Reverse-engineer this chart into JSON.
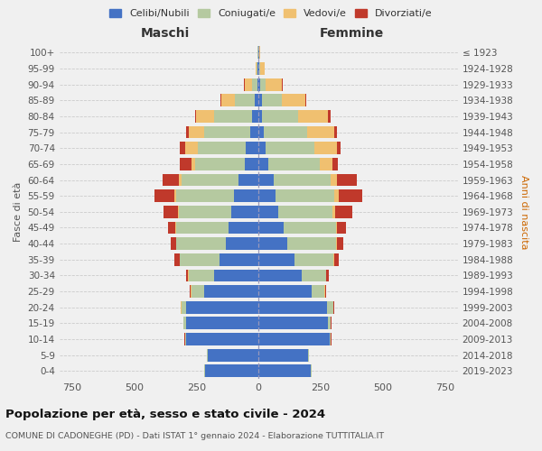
{
  "age_groups": [
    "0-4",
    "5-9",
    "10-14",
    "15-19",
    "20-24",
    "25-29",
    "30-34",
    "35-39",
    "40-44",
    "45-49",
    "50-54",
    "55-59",
    "60-64",
    "65-69",
    "70-74",
    "75-79",
    "80-84",
    "85-89",
    "90-94",
    "95-99",
    "100+"
  ],
  "birth_years": [
    "2019-2023",
    "2014-2018",
    "2009-2013",
    "2004-2008",
    "1999-2003",
    "1994-1998",
    "1989-1993",
    "1984-1988",
    "1979-1983",
    "1974-1978",
    "1969-1973",
    "1964-1968",
    "1959-1963",
    "1954-1958",
    "1949-1953",
    "1944-1948",
    "1939-1943",
    "1934-1938",
    "1929-1933",
    "1924-1928",
    "≤ 1923"
  ],
  "colors": {
    "celibe": "#4472c4",
    "coniugato": "#b5c9a0",
    "vedovo": "#f0c070",
    "divorziato": "#c0392b"
  },
  "maschi": {
    "celibe": [
      215,
      205,
      290,
      290,
      290,
      220,
      180,
      155,
      130,
      120,
      110,
      100,
      80,
      55,
      50,
      35,
      25,
      15,
      5,
      3,
      2
    ],
    "coniugato": [
      2,
      3,
      5,
      10,
      20,
      50,
      100,
      160,
      200,
      210,
      210,
      230,
      230,
      200,
      195,
      185,
      155,
      80,
      20,
      5,
      2
    ],
    "vedovo": [
      1,
      1,
      1,
      1,
      2,
      2,
      2,
      2,
      2,
      3,
      5,
      8,
      10,
      15,
      50,
      60,
      70,
      55,
      30,
      5,
      1
    ],
    "divorziato": [
      0,
      0,
      1,
      1,
      2,
      5,
      10,
      20,
      20,
      30,
      55,
      80,
      65,
      45,
      20,
      10,
      5,
      3,
      2,
      0,
      0
    ]
  },
  "femmine": {
    "nubile": [
      210,
      200,
      285,
      280,
      275,
      215,
      175,
      145,
      115,
      100,
      80,
      70,
      60,
      40,
      30,
      20,
      15,
      12,
      5,
      3,
      2
    ],
    "coniugata": [
      2,
      3,
      5,
      10,
      25,
      50,
      95,
      155,
      195,
      210,
      215,
      235,
      230,
      205,
      195,
      175,
      145,
      80,
      25,
      5,
      2
    ],
    "vedova": [
      1,
      1,
      1,
      1,
      2,
      2,
      3,
      3,
      4,
      5,
      12,
      18,
      25,
      50,
      90,
      110,
      120,
      95,
      65,
      15,
      2
    ],
    "divorziata": [
      0,
      0,
      1,
      1,
      2,
      5,
      10,
      20,
      25,
      35,
      70,
      95,
      80,
      25,
      15,
      10,
      8,
      5,
      2,
      0,
      0
    ]
  },
  "title": "Popolazione per età, sesso e stato civile - 2024",
  "subtitle": "COMUNE DI CADONEGHE (PD) - Dati ISTAT 1° gennaio 2024 - Elaborazione TUTTITALIA.IT",
  "xlabel_left": "Maschi",
  "xlabel_right": "Femmine",
  "ylabel_left": "Fasce di età",
  "ylabel_right": "Anni di nascita",
  "xlim": 800,
  "bg_color": "#f0f0f0",
  "legend_labels": [
    "Celibi/Nubili",
    "Coniugati/e",
    "Vedovi/e",
    "Divorziati/e"
  ]
}
